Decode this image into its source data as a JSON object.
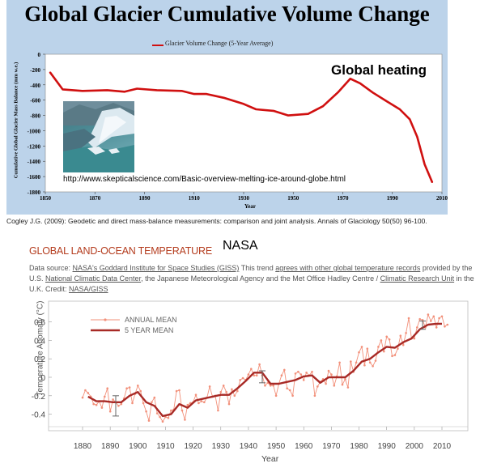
{
  "glacier": {
    "title": "Global Glacier Cumulative Volume Change",
    "legend_label": "Glacier Volume Change (5-Year Average)",
    "annotation": "Global heating",
    "url": "http://www.skepticalscience.com/Basic-overview-melting-ice-around-globe.html",
    "photo_icon": "glacier-photo",
    "citation": "Cogley J.G. (2009): Geodetic and direct mass-balance measurements: comparison and joint analysis. Annals of Glaciology 50(50) 96-100.",
    "line_color": "#d01010",
    "background_color": "#bcd3ea"
  },
  "temperature": {
    "title": "GLOBAL LAND-OCEAN TEMPERATURE",
    "source_label": "NASA",
    "source": {
      "p1": "Data source: ",
      "l1": "NASA's Goddard Institute for Space Studies (GISS)",
      "p2": " This trend ",
      "l2": "agrees with other global temperature records",
      "p3": " provided by the U.S. ",
      "l3": "National Climatic Data Center",
      "p4": ", the Japanese Meteorological Agency and the Met Office Hadley Centre / ",
      "l4": "Climatic Research Unit",
      "p5": " in the U.K. Credit: ",
      "l5": "NASA/GISS"
    },
    "annual_color": "#f2907a",
    "mean_color": "#a82a26"
  },
  "chart_data": [
    {
      "type": "line",
      "title": "Global Glacier Cumulative Volume Change",
      "xlabel": "Year",
      "ylabel": "Cumulative Global Glacier Mass Balance (mm w.e.)",
      "xlim": [
        1850,
        2010
      ],
      "ylim": [
        -1800,
        0
      ],
      "xticks": [
        1850,
        1870,
        1890,
        1910,
        1930,
        1950,
        1970,
        1990,
        2010
      ],
      "yticks": [
        0,
        -200,
        -400,
        -600,
        -800,
        -1000,
        -1200,
        -1400,
        -1600,
        -1800
      ],
      "grid": false,
      "legend": "top-center",
      "series": [
        {
          "name": "Glacier Volume Change (5-Year Average)",
          "x": [
            1852,
            1857,
            1865,
            1875,
            1882,
            1887,
            1895,
            1905,
            1910,
            1915,
            1922,
            1930,
            1935,
            1942,
            1948,
            1956,
            1962,
            1968,
            1973,
            1977,
            1982,
            1988,
            1993,
            1997,
            2000,
            2003,
            2006
          ],
          "y": [
            -240,
            -460,
            -480,
            -470,
            -490,
            -450,
            -470,
            -480,
            -520,
            -520,
            -570,
            -650,
            -720,
            -740,
            -800,
            -780,
            -680,
            -500,
            -320,
            -380,
            -500,
            -620,
            -720,
            -850,
            -1080,
            -1440,
            -1670
          ]
        }
      ]
    },
    {
      "type": "line",
      "title": "GLOBAL LAND-OCEAN TEMPERATURE",
      "xlabel": "Year",
      "ylabel": "Temperature Anomaly (°C)",
      "xlim": [
        1875,
        2015
      ],
      "ylim": [
        -0.5,
        0.7
      ],
      "xticks": [
        1880,
        1890,
        1900,
        1910,
        1920,
        1930,
        1940,
        1950,
        1960,
        1970,
        1980,
        1990,
        2000,
        2010
      ],
      "yticks": [
        0.6,
        0.4,
        0.2,
        0,
        -0.2,
        -0.4
      ],
      "grid": false,
      "legend": "top-left",
      "series": [
        {
          "name": "ANNUAL MEAN",
          "x": [
            1880,
            1881,
            1882,
            1883,
            1884,
            1885,
            1886,
            1887,
            1888,
            1889,
            1890,
            1891,
            1892,
            1893,
            1894,
            1895,
            1896,
            1897,
            1898,
            1899,
            1900,
            1901,
            1902,
            1903,
            1904,
            1905,
            1906,
            1907,
            1908,
            1909,
            1910,
            1911,
            1912,
            1913,
            1914,
            1915,
            1916,
            1917,
            1918,
            1919,
            1920,
            1921,
            1922,
            1923,
            1924,
            1925,
            1926,
            1927,
            1928,
            1929,
            1930,
            1931,
            1932,
            1933,
            1934,
            1935,
            1936,
            1937,
            1938,
            1939,
            1940,
            1941,
            1942,
            1943,
            1944,
            1945,
            1946,
            1947,
            1948,
            1949,
            1950,
            1951,
            1952,
            1953,
            1954,
            1955,
            1956,
            1957,
            1958,
            1959,
            1960,
            1961,
            1962,
            1963,
            1964,
            1965,
            1966,
            1967,
            1968,
            1969,
            1970,
            1971,
            1972,
            1973,
            1974,
            1975,
            1976,
            1977,
            1978,
            1979,
            1980,
            1981,
            1982,
            1983,
            1984,
            1985,
            1986,
            1987,
            1988,
            1989,
            1990,
            1991,
            1992,
            1993,
            1994,
            1995,
            1996,
            1997,
            1998,
            1999,
            2000,
            2001,
            2002,
            2003,
            2004,
            2005,
            2006,
            2007,
            2008,
            2009,
            2010,
            2011,
            2012
          ],
          "y": [
            -0.22,
            -0.14,
            -0.17,
            -0.21,
            -0.29,
            -0.3,
            -0.26,
            -0.33,
            -0.21,
            -0.12,
            -0.37,
            -0.24,
            -0.27,
            -0.31,
            -0.29,
            -0.23,
            -0.12,
            -0.11,
            -0.28,
            -0.18,
            -0.09,
            -0.15,
            -0.28,
            -0.37,
            -0.47,
            -0.27,
            -0.22,
            -0.39,
            -0.43,
            -0.48,
            -0.43,
            -0.44,
            -0.36,
            -0.35,
            -0.15,
            -0.14,
            -0.36,
            -0.46,
            -0.3,
            -0.28,
            -0.27,
            -0.19,
            -0.28,
            -0.26,
            -0.27,
            -0.22,
            -0.1,
            -0.21,
            -0.2,
            -0.36,
            -0.16,
            -0.09,
            -0.16,
            -0.29,
            -0.13,
            -0.2,
            -0.15,
            -0.03,
            -0.01,
            -0.03,
            0.03,
            0.09,
            0.02,
            0.02,
            0.14,
            0.02,
            -0.09,
            -0.06,
            -0.09,
            -0.09,
            -0.2,
            -0.07,
            0.02,
            0.08,
            -0.12,
            -0.14,
            -0.2,
            0.04,
            0.06,
            0.03,
            -0.03,
            0.05,
            0.02,
            0.06,
            -0.2,
            -0.1,
            -0.05,
            -0.02,
            -0.07,
            0.07,
            0.03,
            -0.09,
            0.01,
            0.16,
            -0.08,
            -0.02,
            -0.11,
            0.17,
            0.06,
            0.16,
            0.27,
            0.33,
            0.13,
            0.31,
            0.16,
            0.12,
            0.18,
            0.33,
            0.4,
            0.28,
            0.44,
            0.41,
            0.23,
            0.24,
            0.31,
            0.45,
            0.35,
            0.48,
            0.64,
            0.42,
            0.42,
            0.54,
            0.63,
            0.62,
            0.54,
            0.68,
            0.61,
            0.66,
            0.54,
            0.64,
            0.66,
            0.55,
            0.57
          ]
        },
        {
          "name": "5 YEAR MEAN",
          "x": [
            1882,
            1885,
            1888,
            1891,
            1894,
            1897,
            1900,
            1903,
            1906,
            1909,
            1912,
            1915,
            1918,
            1921,
            1924,
            1927,
            1930,
            1933,
            1936,
            1939,
            1942,
            1945,
            1948,
            1951,
            1954,
            1957,
            1960,
            1963,
            1966,
            1969,
            1972,
            1975,
            1978,
            1981,
            1984,
            1987,
            1990,
            1993,
            1996,
            1999,
            2002,
            2005,
            2008,
            2010
          ],
          "y": [
            -0.21,
            -0.26,
            -0.26,
            -0.27,
            -0.27,
            -0.2,
            -0.16,
            -0.27,
            -0.31,
            -0.42,
            -0.4,
            -0.29,
            -0.33,
            -0.25,
            -0.23,
            -0.21,
            -0.19,
            -0.19,
            -0.12,
            -0.04,
            0.05,
            0.05,
            -0.07,
            -0.07,
            -0.05,
            -0.03,
            0.01,
            0.02,
            -0.06,
            0.0,
            0.0,
            0.0,
            0.07,
            0.17,
            0.2,
            0.27,
            0.33,
            0.32,
            0.38,
            0.42,
            0.52,
            0.57,
            0.58,
            0.58
          ]
        }
      ],
      "error_bars": [
        {
          "x": 1892,
          "y": -0.28,
          "low": -0.42,
          "high": -0.2
        },
        {
          "x": 1945,
          "y": 0.01,
          "low": -0.06,
          "high": 0.07
        },
        {
          "x": 2003,
          "y": 0.55,
          "low": 0.52,
          "high": 0.61
        }
      ]
    }
  ]
}
